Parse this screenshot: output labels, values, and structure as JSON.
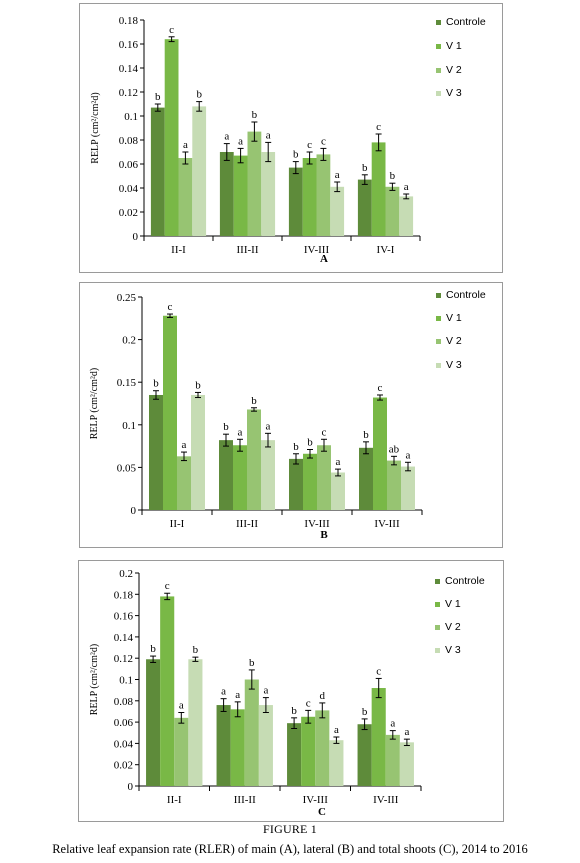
{
  "figure": {
    "title": "FIGURE 1",
    "caption": "Relative leaf expansion rate (RLER) of main (A), lateral (B) and total shoots (C), 2014 to 2016"
  },
  "colors": {
    "Controle": "#5e8b3a",
    "V 1": "#79b846",
    "V 2": "#97c472",
    "V 3": "#c6dcb4"
  },
  "chart_data": [
    {
      "type": "bar",
      "panel_label": "A",
      "ylabel": "RELP (cm²/cm²d)",
      "ylim": [
        0,
        0.18
      ],
      "yticks": [
        "0",
        "0.02",
        "0.04",
        "0.06",
        "0.08",
        "0.1",
        "0.12",
        "0.14",
        "0.16",
        "0.18"
      ],
      "categories": [
        "II-I",
        "III-II",
        "IV-III",
        "IV-I"
      ],
      "legend": "right",
      "series": [
        {
          "name": "Controle",
          "values": [
            0.107,
            0.07,
            0.057,
            0.047
          ],
          "errors": [
            0.003,
            0.007,
            0.005,
            0.004
          ],
          "letters": [
            "b",
            "a",
            "b",
            "b"
          ]
        },
        {
          "name": "V 1",
          "values": [
            0.164,
            0.067,
            0.065,
            0.078
          ],
          "errors": [
            0.002,
            0.006,
            0.005,
            0.007
          ],
          "letters": [
            "c",
            "a",
            "c",
            "c"
          ]
        },
        {
          "name": "V 2",
          "values": [
            0.065,
            0.087,
            0.068,
            0.041
          ],
          "errors": [
            0.005,
            0.008,
            0.005,
            0.003
          ],
          "letters": [
            "a",
            "b",
            "c",
            "b"
          ]
        },
        {
          "name": "V 3",
          "values": [
            0.108,
            0.07,
            0.041,
            0.033
          ],
          "errors": [
            0.004,
            0.008,
            0.004,
            0.002
          ],
          "letters": [
            "b",
            "a",
            "a",
            "a"
          ]
        }
      ]
    },
    {
      "type": "bar",
      "panel_label": "B",
      "ylabel": "RELP (cm²/cm²d)",
      "ylim": [
        0,
        0.25
      ],
      "yticks": [
        "0",
        "0.05",
        "0.1",
        "0.15",
        "0.2",
        "0.25"
      ],
      "categories": [
        "II-I",
        "III-II",
        "IV-III",
        "IV-III"
      ],
      "legend": "right",
      "series": [
        {
          "name": "Controle",
          "values": [
            0.135,
            0.082,
            0.06,
            0.073
          ],
          "errors": [
            0.005,
            0.007,
            0.006,
            0.007
          ],
          "letters": [
            "b",
            "b",
            "b",
            "b"
          ]
        },
        {
          "name": "V 1",
          "values": [
            0.228,
            0.076,
            0.066,
            0.132
          ],
          "errors": [
            0.002,
            0.007,
            0.005,
            0.003
          ],
          "letters": [
            "c",
            "a",
            "b",
            "c"
          ]
        },
        {
          "name": "V 2",
          "values": [
            0.063,
            0.118,
            0.076,
            0.058
          ],
          "errors": [
            0.005,
            0.002,
            0.007,
            0.005
          ],
          "letters": [
            "a",
            "b",
            "c",
            "ab"
          ]
        },
        {
          "name": "V 3",
          "values": [
            0.135,
            0.082,
            0.044,
            0.051
          ],
          "errors": [
            0.003,
            0.008,
            0.004,
            0.005
          ],
          "letters": [
            "b",
            "a",
            "a",
            "a"
          ]
        }
      ]
    },
    {
      "type": "bar",
      "panel_label": "C",
      "ylabel": "RELP (cm²/cm²d)",
      "ylim": [
        0,
        0.2
      ],
      "yticks": [
        "0",
        "0.02",
        "0.04",
        "0.06",
        "0.08",
        "0.1",
        "0.12",
        "0.14",
        "0.16",
        "0.18",
        "0.2"
      ],
      "categories": [
        "II-I",
        "III-II",
        "IV-III",
        "IV-III"
      ],
      "legend": "right",
      "series": [
        {
          "name": "Controle",
          "values": [
            0.119,
            0.076,
            0.059,
            0.058
          ],
          "errors": [
            0.003,
            0.006,
            0.005,
            0.005
          ],
          "letters": [
            "b",
            "a",
            "b",
            "b"
          ]
        },
        {
          "name": "V 1",
          "values": [
            0.178,
            0.072,
            0.065,
            0.092
          ],
          "errors": [
            0.003,
            0.007,
            0.006,
            0.009
          ],
          "letters": [
            "c",
            "a",
            "c",
            "c"
          ]
        },
        {
          "name": "V 2",
          "values": [
            0.064,
            0.1,
            0.071,
            0.048
          ],
          "errors": [
            0.005,
            0.009,
            0.007,
            0.004
          ],
          "letters": [
            "a",
            "b",
            "d",
            "a"
          ]
        },
        {
          "name": "V 3",
          "values": [
            0.119,
            0.076,
            0.043,
            0.041
          ],
          "errors": [
            0.002,
            0.007,
            0.003,
            0.003
          ],
          "letters": [
            "b",
            "a",
            "a",
            "a"
          ]
        }
      ]
    }
  ]
}
